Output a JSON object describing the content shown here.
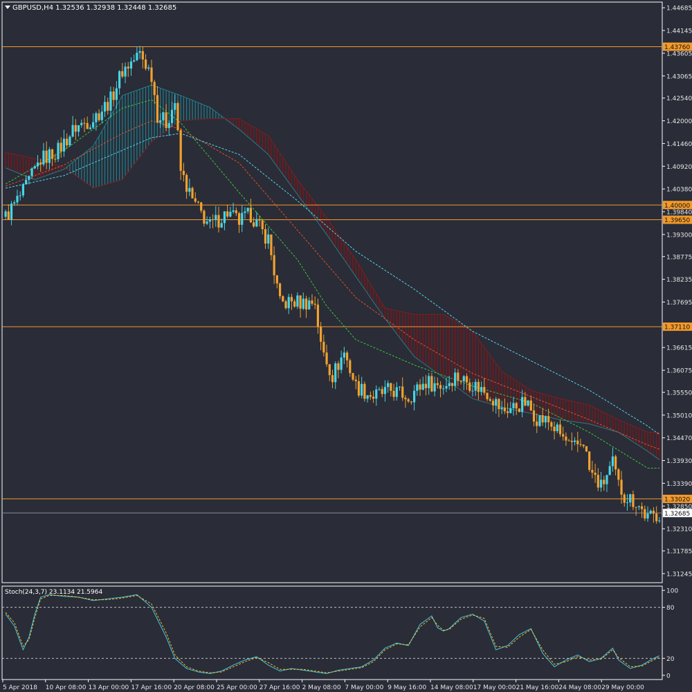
{
  "header": {
    "symbol_line": "GBPUSD,H4  1.32536 1.32938 1.32448 1.32685"
  },
  "colors": {
    "background": "#2a2c37",
    "frame": "#ffffff",
    "bull": "#47d5e8",
    "bear": "#f2a22f",
    "level_line": "#f39a2b",
    "cloud_bear": "#8b1313",
    "cloud_bull": "#1f7f8b",
    "ma_fast": "#39c93d",
    "ma_mid": "#e1522a",
    "ma_slow": "#53d7f2",
    "stoch_main": "#49c9e0",
    "stoch_signal": "#f2c12c"
  },
  "chart_data": [
    {
      "type": "candlestick",
      "title": "GBPUSD,H4",
      "ohlc_display": {
        "open": 1.32536,
        "high": 1.32938,
        "low": 1.32448,
        "close": 1.32685
      },
      "ylim": [
        1.3103,
        1.4482
      ],
      "y_ticks": [
        "1.44685",
        "1.44145",
        "1.43605",
        "1.43065",
        "1.42540",
        "1.42000",
        "1.41460",
        "1.40920",
        "1.40380",
        "1.39840",
        "1.39300",
        "1.38775",
        "1.38235",
        "1.37695",
        "1.36615",
        "1.36075",
        "1.35550",
        "1.35010",
        "1.34470",
        "1.33930",
        "1.33390",
        "1.32850",
        "1.32310",
        "1.31785",
        "1.31245"
      ],
      "x_ticks": [
        "5 Apr 2018",
        "10 Apr 08:00",
        "13 Apr 00:00",
        "17 Apr 16:00",
        "20 Apr 08:00",
        "25 Apr 00:00",
        "27 Apr 16:00",
        "2 May 08:00",
        "7 May 00:00",
        "9 May 16:00",
        "14 May 08:00",
        "17 May 00:00",
        "21 May 16:00",
        "24 May 08:00",
        "29 May 00:00"
      ],
      "horizontal_levels": [
        "1.43760",
        "1.40000",
        "1.39650",
        "1.37110",
        "1.33020"
      ],
      "current_price": "1.32685",
      "close_path": [
        [
          0,
          1.3972
        ],
        [
          6,
          1.403
        ],
        [
          12,
          1.4108
        ],
        [
          18,
          1.413
        ],
        [
          24,
          1.4185
        ],
        [
          30,
          1.4205
        ],
        [
          36,
          1.425
        ],
        [
          40,
          1.432
        ],
        [
          44,
          1.4345
        ],
        [
          46,
          1.436
        ],
        [
          50,
          1.431
        ],
        [
          52,
          1.4215
        ],
        [
          55,
          1.4195
        ],
        [
          58,
          1.4245
        ],
        [
          60,
          1.408
        ],
        [
          64,
          1.401
        ],
        [
          70,
          1.395
        ],
        [
          76,
          1.3982
        ],
        [
          80,
          1.396
        ],
        [
          84,
          1.3978
        ],
        [
          88,
          1.3935
        ],
        [
          90,
          1.392
        ],
        [
          94,
          1.3765
        ],
        [
          98,
          1.377
        ],
        [
          102,
          1.3768
        ],
        [
          106,
          1.377
        ],
        [
          108,
          1.3665
        ],
        [
          112,
          1.3595
        ],
        [
          116,
          1.365
        ],
        [
          120,
          1.357
        ],
        [
          126,
          1.3545
        ],
        [
          132,
          1.356
        ],
        [
          138,
          1.3545
        ],
        [
          144,
          1.358
        ],
        [
          150,
          1.357
        ],
        [
          154,
          1.3595
        ],
        [
          160,
          1.3575
        ],
        [
          166,
          1.355
        ],
        [
          170,
          1.351
        ],
        [
          174,
          1.352
        ],
        [
          178,
          1.353
        ],
        [
          182,
          1.3495
        ],
        [
          186,
          1.3485
        ],
        [
          190,
          1.3455
        ],
        [
          194,
          1.342
        ],
        [
          198,
          1.344
        ],
        [
          200,
          1.337
        ],
        [
          204,
          1.333
        ],
        [
          208,
          1.3385
        ],
        [
          210,
          1.3335
        ],
        [
          212,
          1.331
        ],
        [
          216,
          1.3295
        ],
        [
          220,
          1.3255
        ],
        [
          224,
          1.3268
        ]
      ],
      "cloud": {
        "span_a": [
          [
            0,
            1.4088
          ],
          [
            10,
            1.406
          ],
          [
            20,
            1.4085
          ],
          [
            30,
            1.414
          ],
          [
            40,
            1.426
          ],
          [
            50,
            1.4285
          ],
          [
            60,
            1.426
          ],
          [
            70,
            1.4232
          ],
          [
            80,
            1.418
          ],
          [
            90,
            1.412
          ],
          [
            100,
            1.4025
          ],
          [
            110,
            1.393
          ],
          [
            120,
            1.383
          ],
          [
            130,
            1.373
          ],
          [
            140,
            1.364
          ],
          [
            150,
            1.359
          ],
          [
            160,
            1.354
          ],
          [
            170,
            1.352
          ],
          [
            180,
            1.3505
          ],
          [
            190,
            1.349
          ],
          [
            200,
            1.348
          ],
          [
            210,
            1.346
          ],
          [
            220,
            1.3415
          ],
          [
            224,
            1.3395
          ]
        ],
        "span_b": [
          [
            0,
            1.4125
          ],
          [
            10,
            1.411
          ],
          [
            20,
            1.409
          ],
          [
            30,
            1.404
          ],
          [
            40,
            1.406
          ],
          [
            50,
            1.415
          ],
          [
            60,
            1.42
          ],
          [
            70,
            1.4205
          ],
          [
            80,
            1.4205
          ],
          [
            90,
            1.4165
          ],
          [
            100,
            1.406
          ],
          [
            110,
            1.397
          ],
          [
            120,
            1.387
          ],
          [
            130,
            1.3755
          ],
          [
            140,
            1.374
          ],
          [
            150,
            1.374
          ],
          [
            160,
            1.37
          ],
          [
            170,
            1.3605
          ],
          [
            180,
            1.356
          ],
          [
            190,
            1.354
          ],
          [
            200,
            1.3525
          ],
          [
            210,
            1.349
          ],
          [
            220,
            1.346
          ],
          [
            224,
            1.346
          ]
        ]
      },
      "moving_averages": {
        "fast": [
          [
            0,
            1.405
          ],
          [
            20,
            1.413
          ],
          [
            40,
            1.423
          ],
          [
            50,
            1.425
          ],
          [
            60,
            1.4195
          ],
          [
            80,
            1.403
          ],
          [
            100,
            1.387
          ],
          [
            110,
            1.376
          ],
          [
            120,
            1.368
          ],
          [
            140,
            1.362
          ],
          [
            160,
            1.357
          ],
          [
            180,
            1.353
          ],
          [
            200,
            1.346
          ],
          [
            220,
            1.3375
          ]
        ],
        "mid": [
          [
            0,
            1.4045
          ],
          [
            20,
            1.4095
          ],
          [
            40,
            1.417
          ],
          [
            50,
            1.42
          ],
          [
            60,
            1.418
          ],
          [
            80,
            1.41
          ],
          [
            100,
            1.394
          ],
          [
            120,
            1.378
          ],
          [
            140,
            1.368
          ],
          [
            160,
            1.36
          ],
          [
            180,
            1.3545
          ],
          [
            200,
            1.349
          ],
          [
            220,
            1.343
          ],
          [
            224,
            1.342
          ]
        ],
        "slow": [
          [
            0,
            1.404
          ],
          [
            20,
            1.407
          ],
          [
            40,
            1.413
          ],
          [
            50,
            1.416
          ],
          [
            60,
            1.417
          ],
          [
            80,
            1.412
          ],
          [
            100,
            1.401
          ],
          [
            120,
            1.389
          ],
          [
            140,
            1.38
          ],
          [
            160,
            1.37
          ],
          [
            180,
            1.363
          ],
          [
            200,
            1.356
          ],
          [
            220,
            1.3475
          ],
          [
            224,
            1.3455
          ]
        ]
      }
    },
    {
      "type": "line",
      "title": "Stoch(24,3,7) 23.1134 21.5964",
      "ylim": [
        -5,
        105
      ],
      "y_ticks": [
        "100",
        "80",
        "20",
        "0"
      ],
      "levels": [
        80,
        20
      ],
      "series": [
        {
          "name": "main",
          "points": [
            [
              0,
              72
            ],
            [
              3,
              58
            ],
            [
              6,
              30
            ],
            [
              8,
              45
            ],
            [
              10,
              72
            ],
            [
              12,
              92
            ],
            [
              15,
              95
            ],
            [
              20,
              93
            ],
            [
              25,
              92
            ],
            [
              30,
              88
            ],
            [
              35,
              90
            ],
            [
              40,
              92
            ],
            [
              45,
              95
            ],
            [
              50,
              80
            ],
            [
              55,
              45
            ],
            [
              58,
              20
            ],
            [
              62,
              8
            ],
            [
              66,
              4
            ],
            [
              70,
              2
            ],
            [
              74,
              5
            ],
            [
              78,
              12
            ],
            [
              82,
              18
            ],
            [
              86,
              22
            ],
            [
              90,
              12
            ],
            [
              94,
              5
            ],
            [
              98,
              8
            ],
            [
              102,
              6
            ],
            [
              106,
              4
            ],
            [
              110,
              2
            ],
            [
              114,
              6
            ],
            [
              118,
              8
            ],
            [
              122,
              10
            ],
            [
              126,
              18
            ],
            [
              130,
              32
            ],
            [
              134,
              38
            ],
            [
              138,
              35
            ],
            [
              142,
              60
            ],
            [
              146,
              70
            ],
            [
              148,
              56
            ],
            [
              150,
              52
            ],
            [
              152,
              55
            ],
            [
              156,
              68
            ],
            [
              160,
              72
            ],
            [
              164,
              64
            ],
            [
              168,
              30
            ],
            [
              172,
              35
            ],
            [
              176,
              48
            ],
            [
              180,
              55
            ],
            [
              184,
              26
            ],
            [
              188,
              10
            ],
            [
              192,
              18
            ],
            [
              196,
              24
            ],
            [
              200,
              16
            ],
            [
              204,
              20
            ],
            [
              208,
              32
            ],
            [
              210,
              18
            ],
            [
              214,
              8
            ],
            [
              218,
              12
            ],
            [
              222,
              20
            ],
            [
              224,
              23
            ]
          ]
        },
        {
          "name": "signal",
          "points": [
            [
              0,
              74
            ],
            [
              3,
              62
            ],
            [
              6,
              34
            ],
            [
              8,
              42
            ],
            [
              10,
              68
            ],
            [
              12,
              90
            ],
            [
              15,
              94
            ],
            [
              20,
              94
            ],
            [
              25,
              92
            ],
            [
              30,
              89
            ],
            [
              35,
              89
            ],
            [
              40,
              91
            ],
            [
              45,
              94
            ],
            [
              50,
              84
            ],
            [
              55,
              50
            ],
            [
              58,
              24
            ],
            [
              62,
              10
            ],
            [
              66,
              5
            ],
            [
              70,
              3
            ],
            [
              74,
              4
            ],
            [
              78,
              10
            ],
            [
              82,
              16
            ],
            [
              86,
              21
            ],
            [
              90,
              15
            ],
            [
              94,
              7
            ],
            [
              98,
              7
            ],
            [
              102,
              7
            ],
            [
              106,
              5
            ],
            [
              110,
              3
            ],
            [
              114,
              5
            ],
            [
              118,
              7
            ],
            [
              122,
              9
            ],
            [
              126,
              16
            ],
            [
              130,
              30
            ],
            [
              134,
              37
            ],
            [
              138,
              36
            ],
            [
              142,
              57
            ],
            [
              146,
              68
            ],
            [
              148,
              59
            ],
            [
              150,
              53
            ],
            [
              152,
              54
            ],
            [
              156,
              66
            ],
            [
              160,
              71
            ],
            [
              164,
              67
            ],
            [
              168,
              34
            ],
            [
              172,
              33
            ],
            [
              176,
              45
            ],
            [
              180,
              54
            ],
            [
              184,
              30
            ],
            [
              188,
              13
            ],
            [
              192,
              16
            ],
            [
              196,
              22
            ],
            [
              200,
              18
            ],
            [
              204,
              19
            ],
            [
              208,
              30
            ],
            [
              210,
              21
            ],
            [
              214,
              10
            ],
            [
              218,
              11
            ],
            [
              222,
              18
            ],
            [
              224,
              21.6
            ]
          ]
        }
      ]
    }
  ]
}
